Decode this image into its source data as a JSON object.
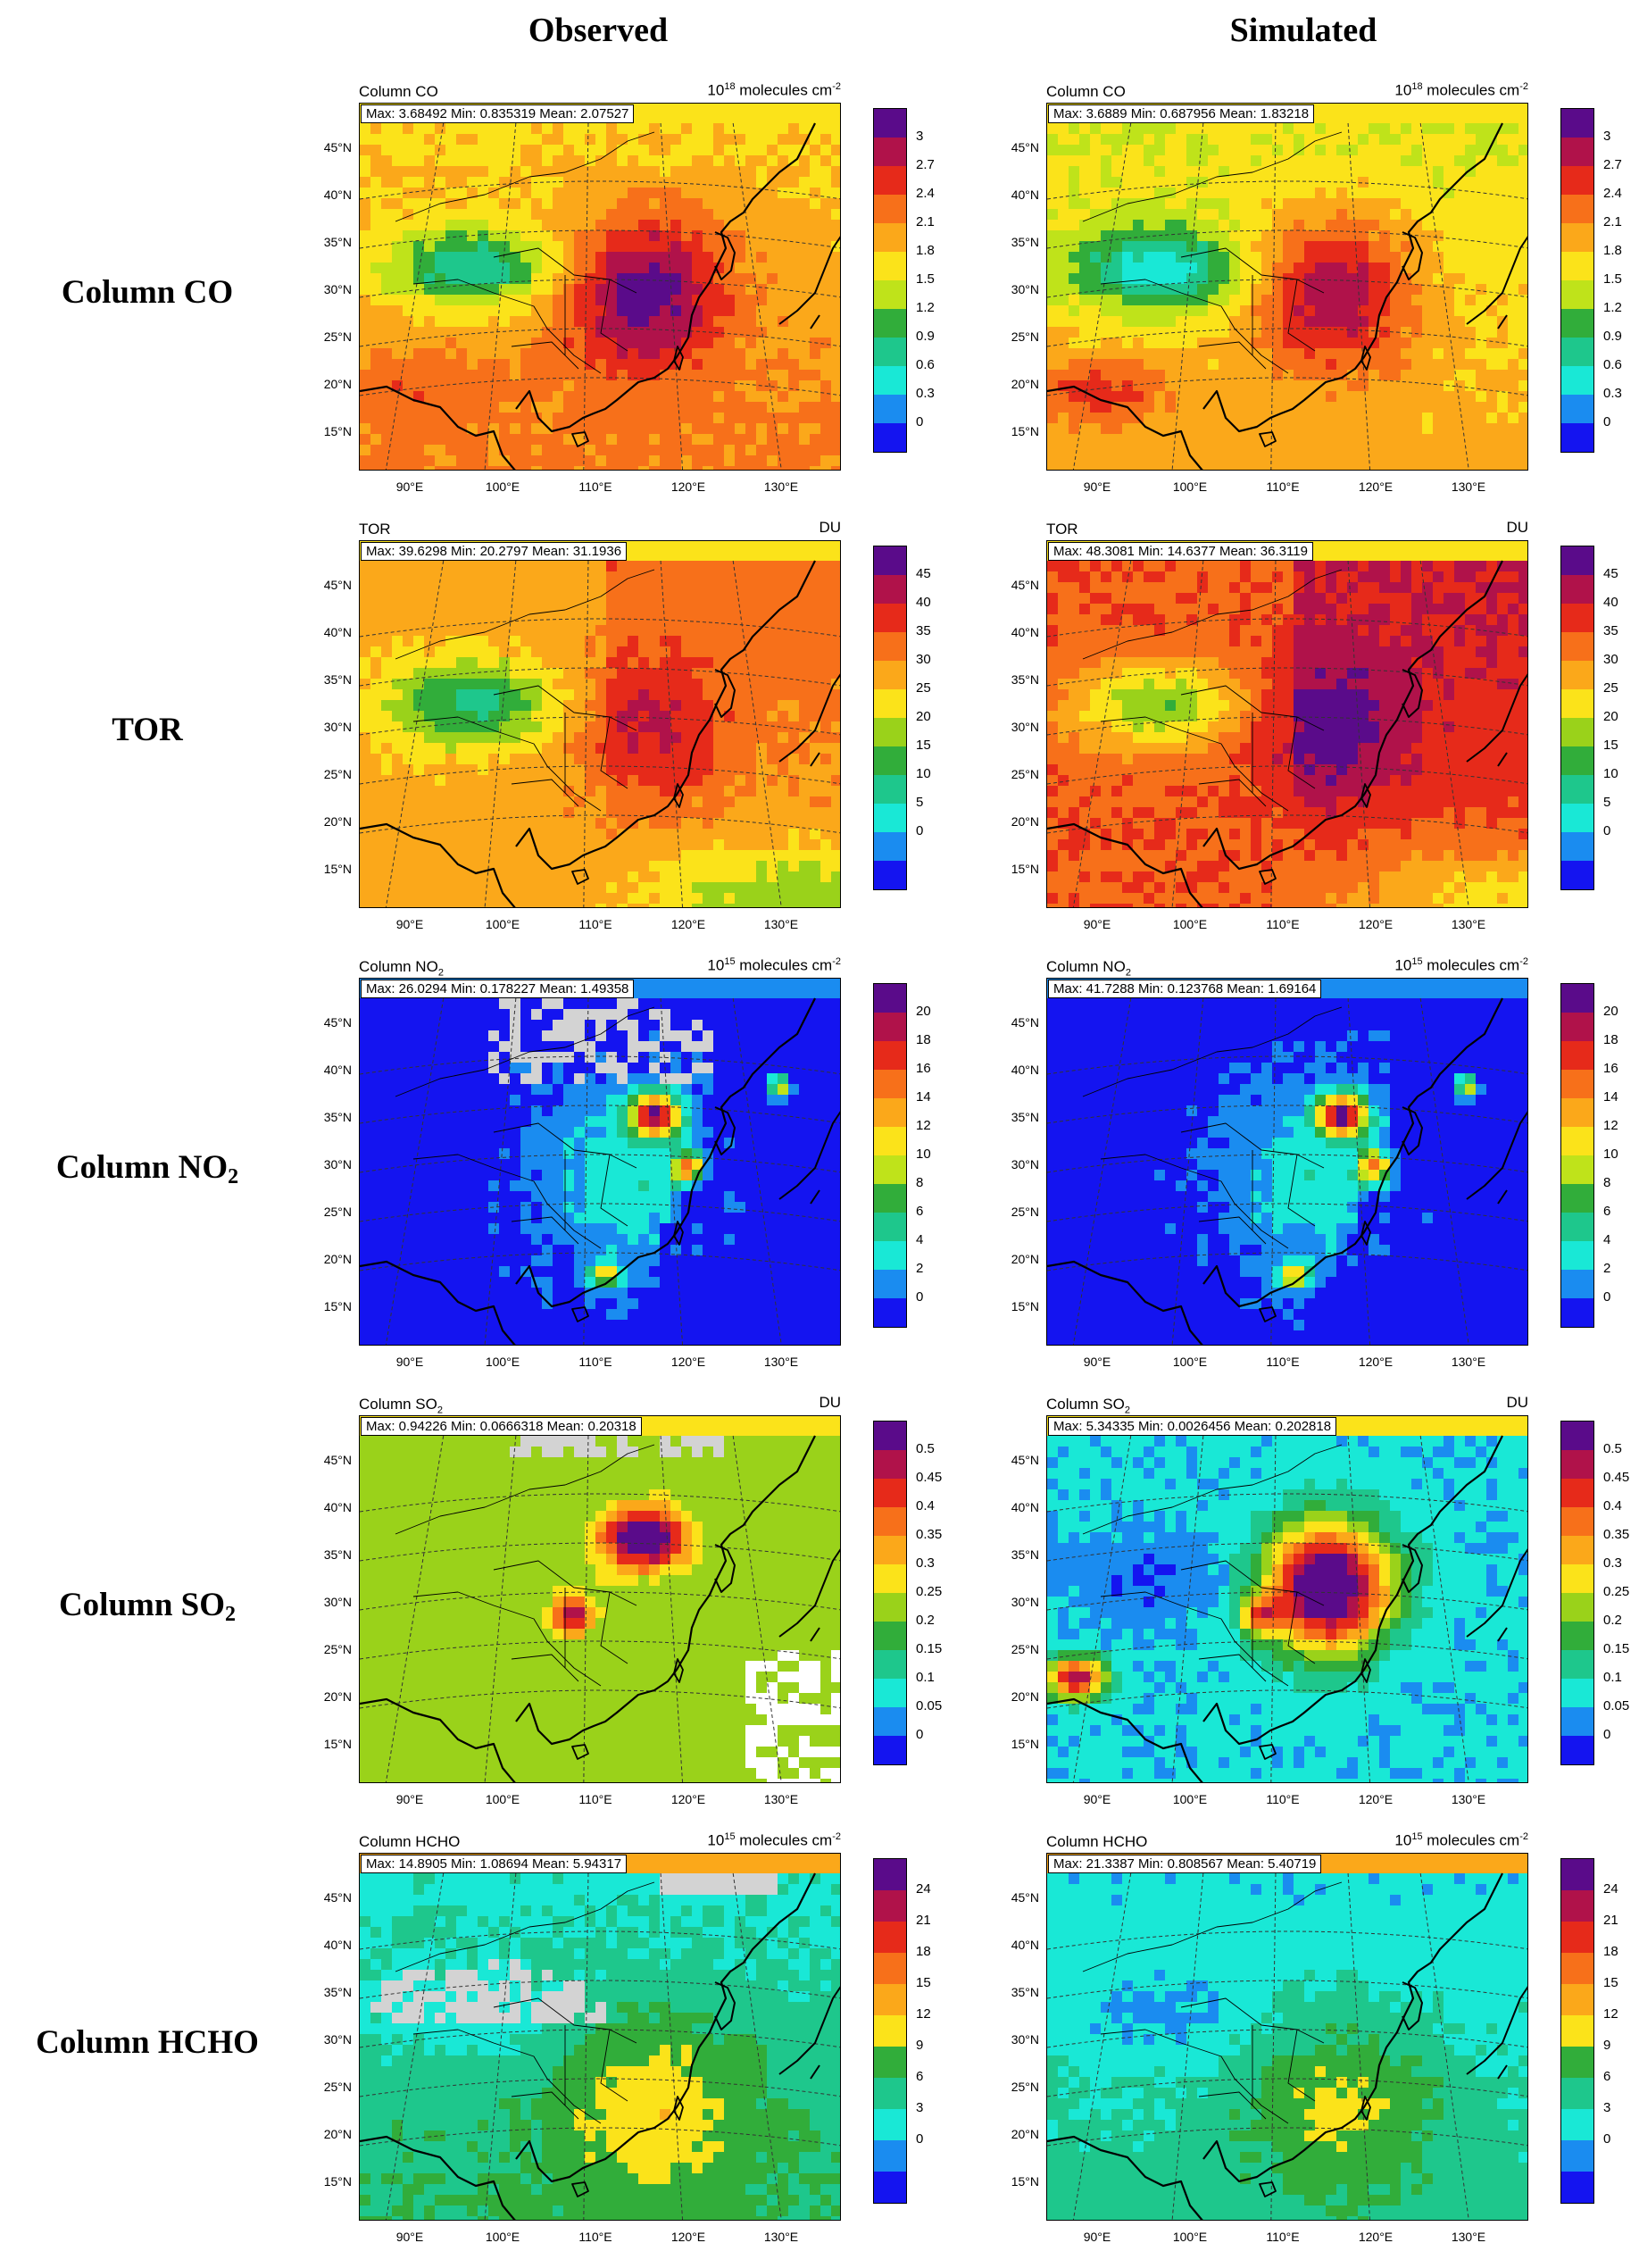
{
  "columns": [
    "Observed",
    "Simulated"
  ],
  "rows": [
    {
      "label": "Column CO",
      "sub": ""
    },
    {
      "label": "TOR",
      "sub": ""
    },
    {
      "label": "Column NO",
      "sub": "2"
    },
    {
      "label": "Column SO",
      "sub": "2"
    },
    {
      "label": "Column HCHO",
      "sub": ""
    }
  ],
  "axes": {
    "lat_labels": [
      "45°N",
      "40°N",
      "35°N",
      "30°N",
      "25°N",
      "20°N",
      "15°N"
    ],
    "lon_labels": [
      "90°E",
      "100°E",
      "110°E",
      "120°E",
      "130°E"
    ]
  },
  "panels": [
    {
      "row": 0,
      "col": 0,
      "title": "Column CO",
      "title_sub": "",
      "unit_pre": "10",
      "unit_sup": "18",
      "unit_post": " molecules cm",
      "unit_sup2": "-2",
      "stats": "Max: 3.68492  Min: 0.835319  Mean: 2.07527",
      "scheme": "co",
      "variant": "obs"
    },
    {
      "row": 0,
      "col": 1,
      "title": "Column CO",
      "title_sub": "",
      "unit_pre": "10",
      "unit_sup": "18",
      "unit_post": " molecules cm",
      "unit_sup2": "-2",
      "stats": "Max: 3.6889  Min: 0.687956  Mean: 1.83218",
      "scheme": "co",
      "variant": "sim"
    },
    {
      "row": 1,
      "col": 0,
      "title": "TOR",
      "title_sub": "",
      "unit_pre": "DU",
      "unit_sup": "",
      "unit_post": "",
      "unit_sup2": "",
      "stats": "Max: 39.6298  Min: 20.2797  Mean: 31.1936",
      "scheme": "tor",
      "variant": "obs"
    },
    {
      "row": 1,
      "col": 1,
      "title": "TOR",
      "title_sub": "",
      "unit_pre": "DU",
      "unit_sup": "",
      "unit_post": "",
      "unit_sup2": "",
      "stats": "Max: 48.3081  Min: 14.6377  Mean: 36.3119",
      "scheme": "tor",
      "variant": "sim"
    },
    {
      "row": 2,
      "col": 0,
      "title": "Column NO",
      "title_sub": "2",
      "unit_pre": "10",
      "unit_sup": "15",
      "unit_post": " molecules cm",
      "unit_sup2": "-2",
      "stats": "Max: 26.0294  Min: 0.178227  Mean: 1.49358",
      "scheme": "no2",
      "variant": "obs"
    },
    {
      "row": 2,
      "col": 1,
      "title": "Column NO",
      "title_sub": "2",
      "unit_pre": "10",
      "unit_sup": "15",
      "unit_post": " molecules cm",
      "unit_sup2": "-2",
      "stats": "Max: 41.7288  Min: 0.123768  Mean: 1.69164",
      "scheme": "no2",
      "variant": "sim"
    },
    {
      "row": 3,
      "col": 0,
      "title": "Column SO",
      "title_sub": "2",
      "unit_pre": "DU",
      "unit_sup": "",
      "unit_post": "",
      "unit_sup2": "",
      "stats": "Max: 0.94226  Min: 0.0666318  Mean: 0.20318",
      "scheme": "so2",
      "variant": "obs"
    },
    {
      "row": 3,
      "col": 1,
      "title": "Column SO",
      "title_sub": "2",
      "unit_pre": "DU",
      "unit_sup": "",
      "unit_post": "",
      "unit_sup2": "",
      "stats": "Max: 5.34335  Min: 0.0026456  Mean: 0.202818",
      "scheme": "so2",
      "variant": "sim"
    },
    {
      "row": 4,
      "col": 0,
      "title": "Column HCHO",
      "title_sub": "",
      "unit_pre": "10",
      "unit_sup": "15",
      "unit_post": " molecules cm",
      "unit_sup2": "-2",
      "stats": "Max: 14.8905  Min: 1.08694  Mean: 5.94317",
      "scheme": "hcho",
      "variant": "obs"
    },
    {
      "row": 4,
      "col": 1,
      "title": "Column HCHO",
      "title_sub": "",
      "unit_pre": "10",
      "unit_sup": "15",
      "unit_post": " molecules cm",
      "unit_sup2": "-2",
      "stats": "Max: 21.3387  Min: 0.808567  Mean: 5.40719",
      "scheme": "hcho",
      "variant": "sim"
    }
  ],
  "colorbars": {
    "co": [
      "3",
      "2.7",
      "2.4",
      "2.1",
      "1.8",
      "1.5",
      "1.2",
      "0.9",
      "0.6",
      "0.3",
      "0"
    ],
    "tor": [
      "45",
      "40",
      "35",
      "30",
      "25",
      "20",
      "15",
      "10",
      "5",
      "0"
    ],
    "no2": [
      "20",
      "18",
      "16",
      "14",
      "12",
      "10",
      "8",
      "6",
      "4",
      "2",
      "0"
    ],
    "so2": [
      "0.5",
      "0.45",
      "0.4",
      "0.35",
      "0.3",
      "0.25",
      "0.2",
      "0.15",
      "0.1",
      "0.05",
      "0"
    ],
    "hcho": [
      "24",
      "21",
      "18",
      "15",
      "12",
      "9",
      "6",
      "3",
      "0"
    ]
  },
  "palette": {
    "co": [
      "#5a0b8a",
      "#b0124a",
      "#e62a1a",
      "#f7701a",
      "#fba81a",
      "#fbe31a",
      "#bfe31a",
      "#31ad3a",
      "#1ec78c",
      "#19e8d6",
      "#1a8cf0",
      "#1414f0"
    ],
    "tor": [
      "#5a0b8a",
      "#b0124a",
      "#e62a1a",
      "#f7701a",
      "#fba81a",
      "#fbe31a",
      "#9ad21a",
      "#31ad3a",
      "#1ec78c",
      "#19e8d6",
      "#1a8cf0",
      "#1414f0"
    ],
    "no2": [
      "#5a0b8a",
      "#b0124a",
      "#e62a1a",
      "#f7701a",
      "#fba81a",
      "#fbe31a",
      "#bfe31a",
      "#31ad3a",
      "#1ec78c",
      "#19e8d6",
      "#1a8cf0",
      "#1414f0"
    ],
    "so2": [
      "#5a0b8a",
      "#b0124a",
      "#e62a1a",
      "#f7701a",
      "#fba81a",
      "#fbe31a",
      "#9ad21a",
      "#31ad3a",
      "#1ec78c",
      "#19e8d6",
      "#1a8cf0",
      "#1414f0"
    ],
    "hcho": [
      "#5a0b8a",
      "#b0124a",
      "#e62a1a",
      "#f7701a",
      "#fba81a",
      "#fbe31a",
      "#31ad3a",
      "#1ec78c",
      "#19e8d6",
      "#1a8cf0",
      "#1414f0"
    ]
  }
}
